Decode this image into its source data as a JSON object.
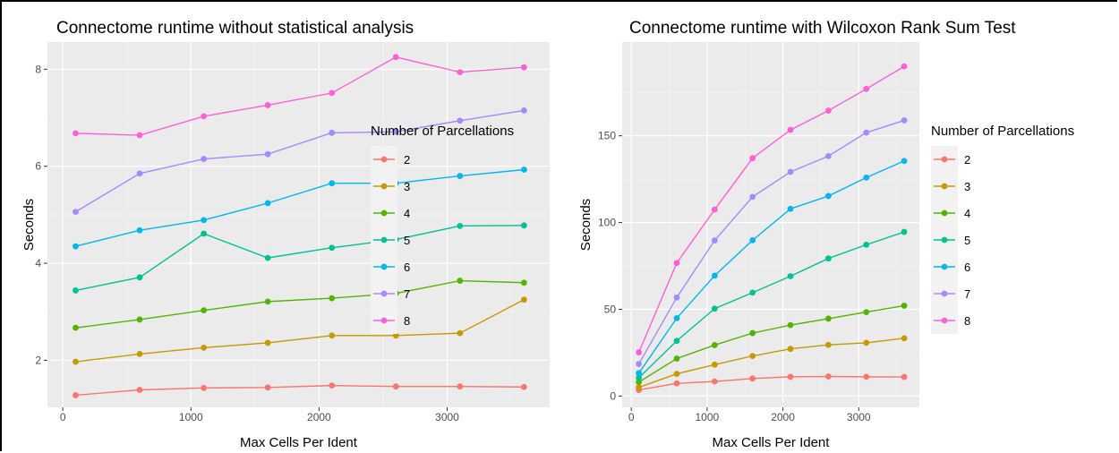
{
  "chart_data": [
    {
      "type": "line",
      "title": "Connectome runtime without statistical analysis",
      "xlabel": "Max Cells Per Ident",
      "ylabel": "Seconds",
      "xlim": [
        -120,
        3800
      ],
      "ylim": [
        1.03,
        8.56
      ],
      "x_ticks": [
        0,
        1000,
        2000,
        3000
      ],
      "y_ticks": [
        2,
        4,
        6,
        8
      ],
      "grid": true,
      "legend_position": "right",
      "legend_title": "Number of Parcellations",
      "x": [
        100,
        600,
        1100,
        1600,
        2100,
        2600,
        3100,
        3600
      ],
      "series": [
        {
          "name": "2",
          "color": "#F8766D",
          "values": [
            1.28,
            1.39,
            1.43,
            1.44,
            1.48,
            1.46,
            1.46,
            1.45
          ]
        },
        {
          "name": "3",
          "color": "#C49A00",
          "values": [
            1.97,
            2.13,
            2.26,
            2.36,
            2.51,
            2.51,
            2.56,
            3.25
          ]
        },
        {
          "name": "4",
          "color": "#53B400",
          "values": [
            2.67,
            2.84,
            3.03,
            3.21,
            3.28,
            3.38,
            3.64,
            3.6
          ]
        },
        {
          "name": "5",
          "color": "#00C094",
          "values": [
            3.44,
            3.71,
            4.61,
            4.11,
            4.32,
            4.49,
            4.77,
            4.78
          ]
        },
        {
          "name": "6",
          "color": "#00B6EB",
          "values": [
            4.35,
            4.68,
            4.89,
            5.24,
            5.65,
            5.65,
            5.8,
            5.93
          ]
        },
        {
          "name": "7",
          "color": "#A58AFF",
          "values": [
            5.06,
            5.85,
            6.15,
            6.25,
            6.69,
            6.71,
            6.94,
            7.15
          ]
        },
        {
          "name": "8",
          "color": "#FB61D7",
          "values": [
            6.68,
            6.64,
            7.03,
            7.26,
            7.51,
            8.25,
            7.94,
            8.04
          ]
        }
      ]
    },
    {
      "type": "line",
      "title": "Connectome runtime with Wilcoxon Rank Sum Test",
      "xlabel": "Max Cells Per Ident",
      "ylabel": "Seconds",
      "xlim": [
        -120,
        3800
      ],
      "ylim": [
        -6.5,
        204
      ],
      "x_ticks": [
        0,
        1000,
        2000,
        3000
      ],
      "y_ticks": [
        0,
        50,
        100,
        150
      ],
      "grid": true,
      "legend_position": "right",
      "legend_title": "Number of Parcellations",
      "x": [
        100,
        600,
        1100,
        1600,
        2100,
        2600,
        3100,
        3600
      ],
      "series": [
        {
          "name": "2",
          "color": "#F8766D",
          "values": [
            3.5,
            7.3,
            8.4,
            10.1,
            11.1,
            11.3,
            11.1,
            11.0
          ]
        },
        {
          "name": "3",
          "color": "#C49A00",
          "values": [
            5.0,
            12.8,
            18.1,
            23.1,
            27.2,
            29.5,
            30.7,
            33.3
          ]
        },
        {
          "name": "4",
          "color": "#53B400",
          "values": [
            8.0,
            21.6,
            29.4,
            36.3,
            40.9,
            44.6,
            48.4,
            52.1
          ]
        },
        {
          "name": "5",
          "color": "#00C094",
          "values": [
            10.5,
            31.8,
            50.4,
            59.6,
            69.1,
            79.3,
            87.2,
            94.6
          ]
        },
        {
          "name": "6",
          "color": "#00B6EB",
          "values": [
            13.2,
            44.9,
            69.4,
            89.8,
            107.9,
            115.3,
            125.9,
            135.5
          ]
        },
        {
          "name": "7",
          "color": "#A58AFF",
          "values": [
            18.5,
            56.8,
            89.7,
            114.8,
            129.2,
            138.3,
            151.8,
            158.9
          ]
        },
        {
          "name": "8",
          "color": "#FB61D7",
          "values": [
            25.2,
            76.7,
            107.5,
            137.1,
            153.4,
            164.5,
            177.0,
            190.0
          ]
        }
      ]
    }
  ]
}
